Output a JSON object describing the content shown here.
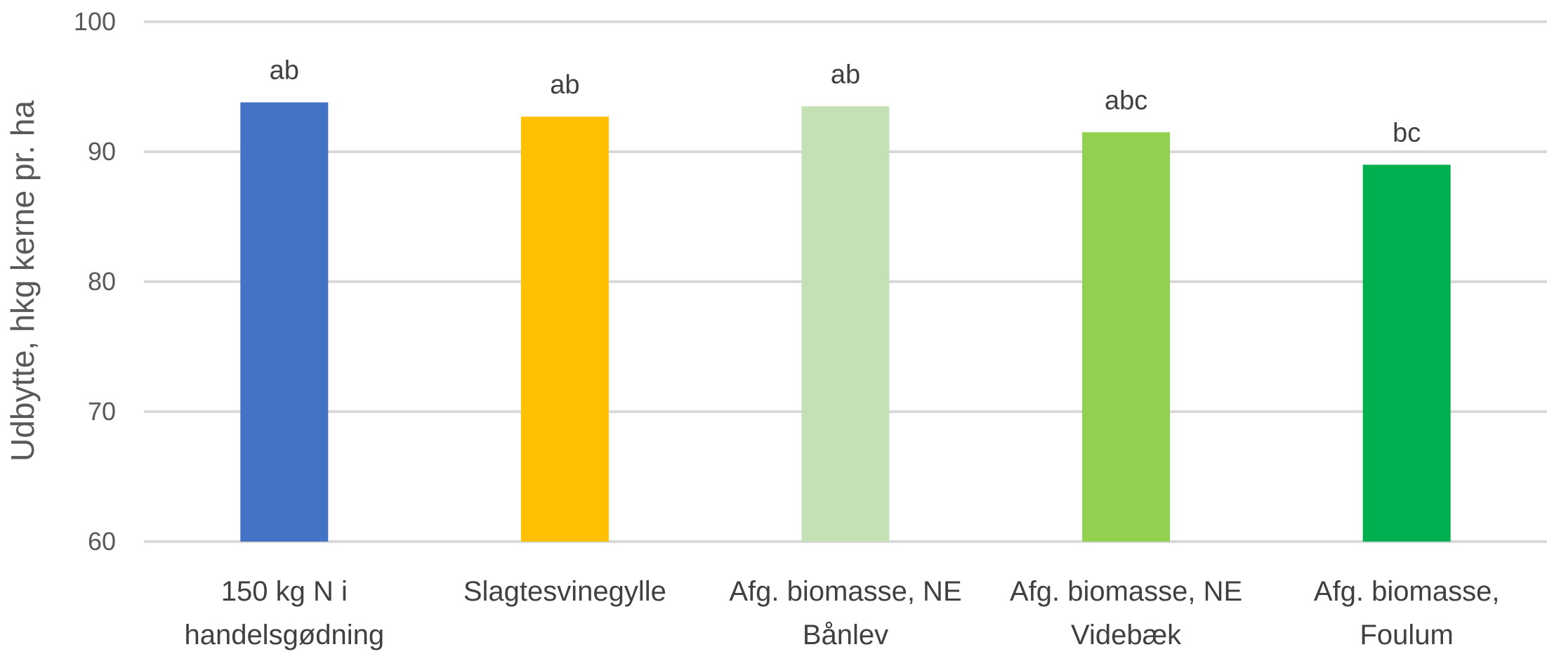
{
  "chart_data": {
    "type": "bar",
    "title": "",
    "xlabel": "",
    "ylabel": "Udbytte, hkg kerne pr. ha",
    "ylim": [
      60,
      100
    ],
    "yticks": [
      60,
      70,
      80,
      90,
      100
    ],
    "grid": true,
    "legend": "none",
    "categories": [
      [
        "150 kg N i",
        "handelsgødning"
      ],
      [
        "Slagtesvinegylle"
      ],
      [
        "Afg. biomasse, NE",
        "Bånlev"
      ],
      [
        "Afg. biomasse, NE",
        "Videbæk"
      ],
      [
        "Afg. biomasse,",
        "Foulum"
      ]
    ],
    "values": [
      93.8,
      92.7,
      93.5,
      91.5,
      89.0
    ],
    "data_labels": [
      "ab",
      "ab",
      "ab",
      "abc",
      "bc"
    ],
    "colors": [
      "#4472C4",
      "#FFC000",
      "#C5E0B4",
      "#92D050",
      "#00B050"
    ]
  }
}
